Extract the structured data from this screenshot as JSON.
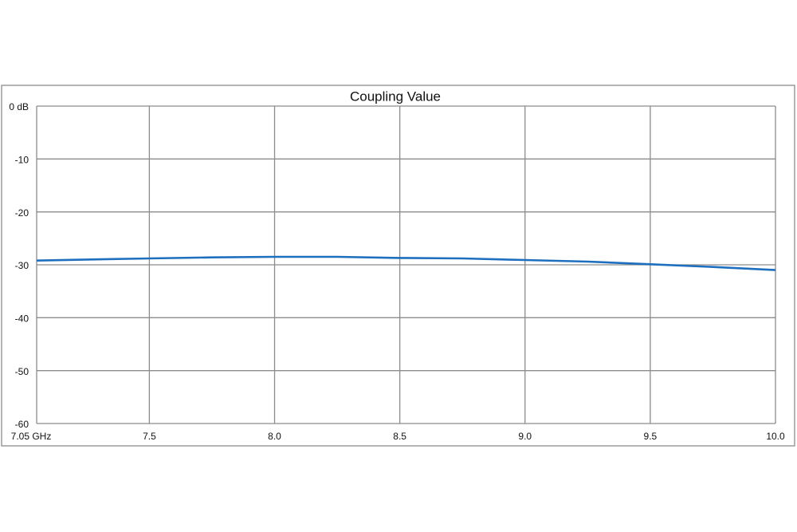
{
  "chart_data": {
    "type": "line",
    "title": "Coupling Value",
    "x": [
      7.05,
      7.25,
      7.5,
      7.75,
      8.0,
      8.25,
      8.5,
      8.75,
      9.0,
      9.25,
      9.5,
      9.75,
      10.0
    ],
    "series": [
      {
        "color": "#1f6fbf",
        "values": [
          -29.2,
          -29.0,
          -28.8,
          -28.6,
          -28.5,
          -28.5,
          -28.7,
          -28.8,
          -29.1,
          -29.4,
          -29.9,
          -30.4,
          -31.0
        ]
      }
    ],
    "xlim": [
      7.05,
      10.0
    ],
    "xticks": [
      {
        "value": 7.05,
        "label": "7.05 GHz"
      },
      7.5,
      {
        "value": 8.0,
        "label": "8.0"
      },
      8.5,
      {
        "value": 9.0,
        "label": "9.0"
      },
      9.5,
      {
        "value": 10.0,
        "label": "10.0"
      }
    ],
    "ylim": [
      -60,
      0
    ],
    "yticks": [
      {
        "value": 0,
        "label": "0 dB"
      },
      -10,
      -20,
      -30,
      -40,
      -50,
      -60
    ],
    "grid": true
  }
}
